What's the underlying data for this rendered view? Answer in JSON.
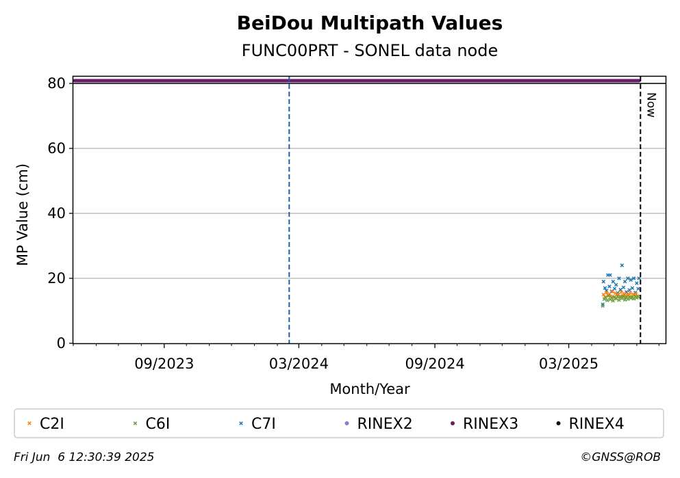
{
  "chart_data": {
    "type": "scatter",
    "title": "BeiDou Multipath Values",
    "subtitle": "FUNC00PRT - SONEL data node",
    "xlabel": "Month/Year",
    "ylabel": "MP Value (cm)",
    "xlim": [
      "2023-05-01",
      "2025-07-10"
    ],
    "ylim": [
      0,
      80
    ],
    "y_ticks": [
      0,
      20,
      40,
      60,
      80
    ],
    "x_ticks": [
      {
        "date": "2023-09-01",
        "label": "09/2023"
      },
      {
        "date": "2024-03-01",
        "label": "03/2024"
      },
      {
        "date": "2024-09-01",
        "label": "09/2024"
      },
      {
        "date": "2025-03-01",
        "label": "03/2025"
      }
    ],
    "grid": "y",
    "legend_placement": "bottom",
    "now_date": "2025-06-06",
    "now_label": "Now",
    "event_line_date": "2024-02-17",
    "rinex_bar_range": [
      "2023-05-01",
      "2025-06-04"
    ],
    "series": [
      {
        "name": "C2I",
        "color": "#ff7f0e",
        "marker": "x"
      },
      {
        "name": "C6I",
        "color": "#6a9f3a",
        "marker": "x"
      },
      {
        "name": "C7I",
        "color": "#1f77b4",
        "marker": "x"
      },
      {
        "name": "RINEX2",
        "color": "#8c7fc6",
        "marker": "dot"
      },
      {
        "name": "RINEX3",
        "color": "#6a1b6a",
        "marker": "dot"
      },
      {
        "name": "RINEX4",
        "color": "#1a0a1a",
        "marker": "dot"
      }
    ],
    "points": {
      "C2I": [
        [
          "2025-04-17",
          15.0
        ],
        [
          "2025-04-19",
          14.2
        ],
        [
          "2025-04-21",
          15.6
        ],
        [
          "2025-04-23",
          14.8
        ],
        [
          "2025-04-25",
          15.2
        ],
        [
          "2025-04-27",
          14.5
        ],
        [
          "2025-04-29",
          15.9
        ],
        [
          "2025-05-01",
          14.1
        ],
        [
          "2025-05-03",
          15.4
        ],
        [
          "2025-05-05",
          14.9
        ],
        [
          "2025-05-07",
          15.1
        ],
        [
          "2025-05-09",
          14.4
        ],
        [
          "2025-05-11",
          15.7
        ],
        [
          "2025-05-13",
          14.6
        ],
        [
          "2025-05-15",
          15.3
        ],
        [
          "2025-05-17",
          14.3
        ],
        [
          "2025-05-19",
          15.0
        ],
        [
          "2025-05-21",
          14.7
        ],
        [
          "2025-05-23",
          15.5
        ],
        [
          "2025-05-25",
          14.2
        ],
        [
          "2025-05-27",
          15.1
        ],
        [
          "2025-05-29",
          14.8
        ],
        [
          "2025-05-31",
          15.2
        ],
        [
          "2025-06-02",
          14.5
        ]
      ],
      "C6I": [
        [
          "2025-04-16",
          11.5
        ],
        [
          "2025-04-18",
          13.6
        ],
        [
          "2025-04-20",
          14.1
        ],
        [
          "2025-04-22",
          13.2
        ],
        [
          "2025-04-24",
          14.6
        ],
        [
          "2025-04-26",
          13.5
        ],
        [
          "2025-04-28",
          14.0
        ],
        [
          "2025-04-30",
          13.1
        ],
        [
          "2025-05-02",
          14.3
        ],
        [
          "2025-05-04",
          13.7
        ],
        [
          "2025-05-06",
          14.4
        ],
        [
          "2025-05-08",
          13.3
        ],
        [
          "2025-05-10",
          14.2
        ],
        [
          "2025-05-12",
          13.8
        ],
        [
          "2025-05-14",
          14.5
        ],
        [
          "2025-05-16",
          13.4
        ],
        [
          "2025-05-18",
          14.1
        ],
        [
          "2025-05-20",
          13.6
        ],
        [
          "2025-05-22",
          14.3
        ],
        [
          "2025-05-24",
          13.9
        ],
        [
          "2025-05-26",
          14.2
        ],
        [
          "2025-05-28",
          13.7
        ],
        [
          "2025-05-30",
          14.4
        ],
        [
          "2025-06-01",
          14.0
        ],
        [
          "2025-06-03",
          14.3
        ]
      ],
      "C7I": [
        [
          "2025-04-16",
          12.0
        ],
        [
          "2025-04-17",
          19.0
        ],
        [
          "2025-04-19",
          17.0
        ],
        [
          "2025-04-21",
          16.2
        ],
        [
          "2025-04-23",
          21.0
        ],
        [
          "2025-04-25",
          17.5
        ],
        [
          "2025-04-26",
          21.0
        ],
        [
          "2025-04-28",
          16.0
        ],
        [
          "2025-04-30",
          19.0
        ],
        [
          "2025-05-02",
          16.8
        ],
        [
          "2025-05-04",
          18.0
        ],
        [
          "2025-05-06",
          15.5
        ],
        [
          "2025-05-08",
          20.0
        ],
        [
          "2025-05-10",
          16.5
        ],
        [
          "2025-05-12",
          24.0
        ],
        [
          "2025-05-14",
          17.2
        ],
        [
          "2025-05-16",
          19.0
        ],
        [
          "2025-05-18",
          15.8
        ],
        [
          "2025-05-20",
          20.0
        ],
        [
          "2025-05-22",
          16.4
        ],
        [
          "2025-05-24",
          19.5
        ],
        [
          "2025-05-26",
          17.0
        ],
        [
          "2025-05-28",
          20.0
        ],
        [
          "2025-05-30",
          15.6
        ],
        [
          "2025-06-01",
          18.5
        ],
        [
          "2025-06-03",
          16.8
        ],
        [
          "2025-06-04",
          20.0
        ]
      ]
    }
  },
  "footer": {
    "timestamp": "Fri Jun  6 12:30:39 2025",
    "credit": "©GNSS@ROB"
  }
}
